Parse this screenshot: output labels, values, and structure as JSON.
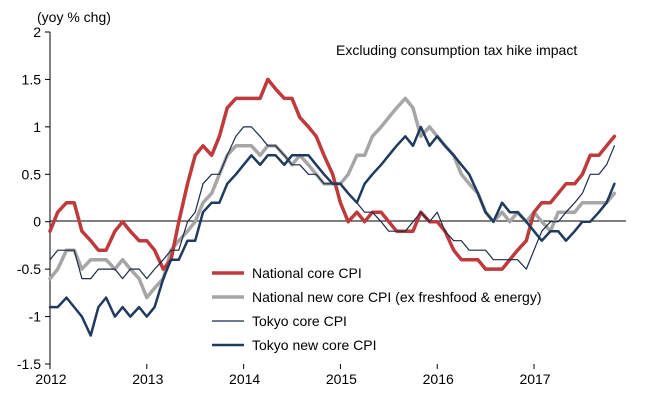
{
  "chart_data": {
    "type": "line",
    "ylabel": "(yoy % chg)",
    "annotation": "Excluding consumption tax hike impact",
    "ylim": [
      -1.5,
      2
    ],
    "yticks": [
      "2",
      "1.5",
      "1",
      "0.5",
      "0",
      "-0.5",
      "-1",
      "-1.5"
    ],
    "ytick_values": [
      2,
      1.5,
      1,
      0.5,
      0,
      -0.5,
      -1,
      -1.5
    ],
    "xlim": [
      2012.0,
      2017.95
    ],
    "xticks": [
      "2012",
      "2013",
      "2014",
      "2015",
      "2016",
      "2017"
    ],
    "xtick_values": [
      2012,
      2013,
      2014,
      2015,
      2016,
      2017
    ],
    "grid": false,
    "legend_position": "lower-center",
    "series": [
      {
        "name": "National core CPI",
        "color": "#c0393b",
        "width": 3.5,
        "x": [
          2012.0,
          2012.08,
          2012.17,
          2012.25,
          2012.33,
          2012.42,
          2012.5,
          2012.58,
          2012.67,
          2012.75,
          2012.83,
          2012.92,
          2013.0,
          2013.08,
          2013.17,
          2013.25,
          2013.33,
          2013.42,
          2013.5,
          2013.58,
          2013.67,
          2013.75,
          2013.83,
          2013.92,
          2014.0,
          2014.08,
          2014.17,
          2014.25,
          2014.33,
          2014.42,
          2014.5,
          2014.58,
          2014.67,
          2014.75,
          2014.83,
          2014.92,
          2015.0,
          2015.08,
          2015.17,
          2015.25,
          2015.33,
          2015.42,
          2015.5,
          2015.58,
          2015.67,
          2015.75,
          2015.83,
          2015.92,
          2016.0,
          2016.08,
          2016.17,
          2016.25,
          2016.33,
          2016.42,
          2016.5,
          2016.58,
          2016.67,
          2016.75,
          2016.83,
          2016.92,
          2017.0,
          2017.08,
          2017.17,
          2017.25,
          2017.33,
          2017.42,
          2017.5,
          2017.58,
          2017.67,
          2017.75,
          2017.83
        ],
        "y": [
          -0.1,
          0.1,
          0.2,
          0.2,
          -0.1,
          -0.2,
          -0.3,
          -0.3,
          -0.1,
          0.0,
          -0.1,
          -0.2,
          -0.2,
          -0.3,
          -0.5,
          -0.4,
          0.0,
          0.4,
          0.7,
          0.8,
          0.7,
          0.9,
          1.2,
          1.3,
          1.3,
          1.3,
          1.3,
          1.5,
          1.4,
          1.3,
          1.3,
          1.1,
          1.0,
          0.9,
          0.7,
          0.5,
          0.2,
          0.0,
          0.1,
          0.0,
          0.1,
          0.1,
          0.0,
          -0.1,
          -0.1,
          -0.1,
          0.1,
          0.0,
          0.0,
          -0.1,
          -0.3,
          -0.4,
          -0.4,
          -0.4,
          -0.5,
          -0.5,
          -0.5,
          -0.4,
          -0.3,
          -0.2,
          0.1,
          0.2,
          0.2,
          0.3,
          0.4,
          0.4,
          0.5,
          0.7,
          0.7,
          0.8,
          0.9
        ]
      },
      {
        "name": "National new core CPI (ex freshfood & energy)",
        "color": "#a6a6a6",
        "width": 3.5,
        "x": [
          2012.0,
          2012.08,
          2012.17,
          2012.25,
          2012.33,
          2012.42,
          2012.5,
          2012.58,
          2012.67,
          2012.75,
          2012.83,
          2012.92,
          2013.0,
          2013.08,
          2013.17,
          2013.25,
          2013.33,
          2013.42,
          2013.5,
          2013.58,
          2013.67,
          2013.75,
          2013.83,
          2013.92,
          2014.0,
          2014.08,
          2014.17,
          2014.25,
          2014.33,
          2014.42,
          2014.5,
          2014.58,
          2014.67,
          2014.75,
          2014.83,
          2014.92,
          2015.0,
          2015.08,
          2015.17,
          2015.25,
          2015.33,
          2015.42,
          2015.5,
          2015.58,
          2015.67,
          2015.75,
          2015.83,
          2015.92,
          2016.0,
          2016.08,
          2016.17,
          2016.25,
          2016.33,
          2016.42,
          2016.5,
          2016.58,
          2016.67,
          2016.75,
          2016.83,
          2016.92,
          2017.0,
          2017.08,
          2017.17,
          2017.25,
          2017.33,
          2017.42,
          2017.5,
          2017.58,
          2017.67,
          2017.75,
          2017.83
        ],
        "y": [
          -0.6,
          -0.5,
          -0.3,
          -0.3,
          -0.5,
          -0.4,
          -0.4,
          -0.4,
          -0.5,
          -0.4,
          -0.5,
          -0.6,
          -0.8,
          -0.7,
          -0.6,
          -0.3,
          -0.2,
          -0.1,
          0.0,
          0.2,
          0.3,
          0.5,
          0.7,
          0.8,
          0.8,
          0.8,
          0.7,
          0.8,
          0.8,
          0.7,
          0.6,
          0.7,
          0.6,
          0.5,
          0.4,
          0.4,
          0.4,
          0.5,
          0.7,
          0.7,
          0.9,
          1.0,
          1.1,
          1.2,
          1.3,
          1.2,
          0.9,
          1.0,
          0.9,
          0.8,
          0.7,
          0.5,
          0.4,
          0.3,
          0.1,
          0.0,
          0.1,
          0.0,
          0.1,
          0.0,
          0.1,
          0.0,
          -0.1,
          0.1,
          0.1,
          0.1,
          0.2,
          0.2,
          0.2,
          0.2,
          0.3
        ]
      },
      {
        "name": "Tokyo core CPI",
        "color": "#1b2a4a",
        "width": 1.2,
        "x": [
          2012.0,
          2012.08,
          2012.17,
          2012.25,
          2012.33,
          2012.42,
          2012.5,
          2012.58,
          2012.67,
          2012.75,
          2012.83,
          2012.92,
          2013.0,
          2013.08,
          2013.17,
          2013.25,
          2013.33,
          2013.42,
          2013.5,
          2013.58,
          2013.67,
          2013.75,
          2013.83,
          2013.92,
          2014.0,
          2014.08,
          2014.17,
          2014.25,
          2014.33,
          2014.42,
          2014.5,
          2014.58,
          2014.67,
          2014.75,
          2014.83,
          2014.92,
          2015.0,
          2015.08,
          2015.17,
          2015.25,
          2015.33,
          2015.42,
          2015.5,
          2015.58,
          2015.67,
          2015.75,
          2015.83,
          2015.92,
          2016.0,
          2016.08,
          2016.17,
          2016.25,
          2016.33,
          2016.42,
          2016.5,
          2016.58,
          2016.67,
          2016.75,
          2016.83,
          2016.92,
          2017.0,
          2017.08,
          2017.17,
          2017.25,
          2017.33,
          2017.42,
          2017.5,
          2017.58,
          2017.67,
          2017.75,
          2017.83
        ],
        "y": [
          -0.4,
          -0.3,
          -0.3,
          -0.3,
          -0.6,
          -0.6,
          -0.5,
          -0.5,
          -0.5,
          -0.6,
          -0.5,
          -0.5,
          -0.6,
          -0.5,
          -0.4,
          -0.3,
          -0.3,
          0.0,
          0.1,
          0.4,
          0.5,
          0.5,
          0.7,
          0.9,
          1.0,
          1.0,
          0.9,
          0.8,
          0.8,
          0.7,
          0.6,
          0.6,
          0.5,
          0.5,
          0.4,
          0.4,
          0.4,
          0.3,
          0.2,
          0.1,
          0.1,
          0.0,
          -0.1,
          -0.1,
          -0.1,
          0.0,
          0.1,
          0.0,
          0.1,
          -0.1,
          -0.2,
          -0.2,
          -0.3,
          -0.3,
          -0.3,
          -0.4,
          -0.4,
          -0.4,
          -0.4,
          -0.5,
          -0.3,
          -0.1,
          0.0,
          0.0,
          0.1,
          0.2,
          0.3,
          0.5,
          0.5,
          0.6,
          0.8
        ]
      },
      {
        "name": "Tokyo new core CPI",
        "color": "#1f3a5f",
        "width": 2.5,
        "x": [
          2012.0,
          2012.08,
          2012.17,
          2012.25,
          2012.33,
          2012.42,
          2012.5,
          2012.58,
          2012.67,
          2012.75,
          2012.83,
          2012.92,
          2013.0,
          2013.08,
          2013.17,
          2013.25,
          2013.33,
          2013.42,
          2013.5,
          2013.58,
          2013.67,
          2013.75,
          2013.83,
          2013.92,
          2014.0,
          2014.08,
          2014.17,
          2014.25,
          2014.33,
          2014.42,
          2014.5,
          2014.58,
          2014.67,
          2014.75,
          2014.83,
          2014.92,
          2015.0,
          2015.08,
          2015.17,
          2015.25,
          2015.33,
          2015.42,
          2015.5,
          2015.58,
          2015.67,
          2015.75,
          2015.83,
          2015.92,
          2016.0,
          2016.08,
          2016.17,
          2016.25,
          2016.33,
          2016.42,
          2016.5,
          2016.58,
          2016.67,
          2016.75,
          2016.83,
          2016.92,
          2017.0,
          2017.08,
          2017.17,
          2017.25,
          2017.33,
          2017.42,
          2017.5,
          2017.58,
          2017.67,
          2017.75,
          2017.83
        ],
        "y": [
          -0.9,
          -0.9,
          -0.8,
          -0.9,
          -1.0,
          -1.2,
          -0.9,
          -0.8,
          -1.0,
          -0.9,
          -1.0,
          -0.9,
          -1.0,
          -0.9,
          -0.6,
          -0.4,
          -0.4,
          -0.2,
          -0.2,
          0.1,
          0.2,
          0.2,
          0.4,
          0.5,
          0.6,
          0.7,
          0.6,
          0.7,
          0.7,
          0.6,
          0.7,
          0.7,
          0.7,
          0.6,
          0.5,
          0.4,
          0.4,
          0.3,
          0.2,
          0.4,
          0.5,
          0.6,
          0.7,
          0.8,
          0.9,
          0.8,
          1.0,
          0.8,
          0.9,
          0.8,
          0.7,
          0.6,
          0.5,
          0.3,
          0.1,
          0.0,
          0.2,
          0.1,
          0.1,
          0.0,
          -0.1,
          -0.2,
          -0.1,
          -0.1,
          -0.2,
          -0.1,
          0.0,
          0.0,
          0.1,
          0.2,
          0.4
        ]
      }
    ]
  }
}
